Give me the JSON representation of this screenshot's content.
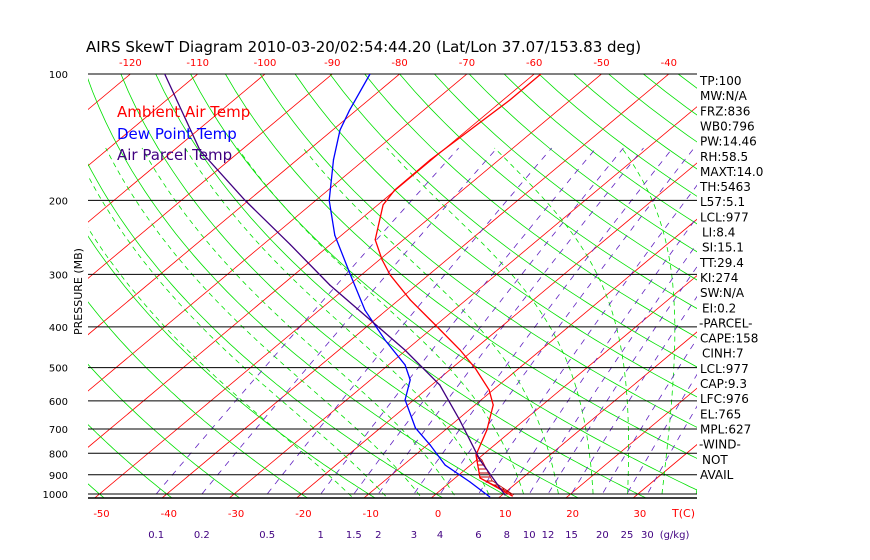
{
  "chart_data": {
    "type": "line",
    "title": "AIRS SkewT Diagram 2010-03-20/02:54:44.20 (Lat/Lon 37.07/153.83 deg)",
    "ylabel": "PRESSURE (MB)",
    "xlabel": "T(C)",
    "mixing_ratio_unit": "(g/kg)",
    "pressure_ticks": [
      100,
      200,
      300,
      400,
      500,
      600,
      700,
      800,
      900,
      1000
    ],
    "top_temp_ticks": [
      -120,
      -110,
      -100,
      -90,
      -80,
      -70,
      -60,
      -50,
      -40
    ],
    "bottom_temp_ticks": [
      -50,
      -40,
      -30,
      -20,
      -10,
      0,
      10,
      20,
      30
    ],
    "mixing_ratio_ticks": [
      "0.1",
      "0.2",
      "0.5",
      "1",
      "1.5",
      "2",
      "3",
      "4",
      "6",
      "8",
      "10",
      "12",
      "15",
      "20",
      "25",
      "30"
    ],
    "ylim": [
      1000,
      100
    ],
    "series": [
      {
        "name": "Ambient Air Temp",
        "color": "#ff0000",
        "p": [
          1011,
          916,
          807,
          704,
          614,
          565,
          501,
          454,
          396,
          345,
          301,
          277,
          248,
          205,
          189,
          160,
          136,
          115,
          100
        ],
        "T": [
          11.7,
          3.7,
          -1.0,
          -3.8,
          -7.3,
          -10.6,
          -16.6,
          -22.0,
          -30.1,
          -38.3,
          -45.7,
          -49.6,
          -54.2,
          -59.2,
          -60.1,
          -60.2,
          -59.6,
          -59.0,
          -59.0
        ]
      },
      {
        "name": "Dew Point Temp",
        "color": "#0000ff",
        "p": [
          1016,
          936,
          853,
          764,
          696,
          597,
          535,
          493,
          430,
          365,
          301,
          242,
          200,
          160,
          136,
          122,
          100
        ],
        "T": [
          8.5,
          2.9,
          -3.8,
          -9.6,
          -14.8,
          -21.3,
          -24.1,
          -27.5,
          -34.9,
          -43.2,
          -51.6,
          -61.0,
          -68.0,
          -74.6,
          -78.9,
          -81.0,
          -84.4
        ]
      },
      {
        "name": "Air Parcel Temp",
        "color": "#400080",
        "p": [
          1005,
          830,
          667,
          550,
          454,
          385,
          318,
          255,
          200,
          152,
          100
        ],
        "T": [
          10.4,
          0.5,
          -9.6,
          -18.8,
          -30.2,
          -40.7,
          -52.9,
          -65.9,
          -80.5,
          -96.1,
          -114.9
        ]
      }
    ]
  },
  "stats": [
    "TP:100",
    "MW:N/A",
    "FRZ:836",
    "WB0:796",
    "PW:14.46",
    "RH:58.5",
    "MAXT:14.0",
    "TH:5463",
    "L57:5.1",
    "LCL:977",
    "LI:8.4",
    "SI:15.1",
    "TT:29.4",
    "KI:274",
    "SW:N/A",
    "EI:0.2",
    "-PARCEL-",
    "CAPE:158",
    "CINH:7",
    "LCL:977",
    "CAP:9.3",
    "LFC:976",
    "EL:765",
    "MPL:627",
    "-WIND-",
    "NOT",
    "AVAIL"
  ],
  "colors": {
    "temp": "#ff0000",
    "dew": "#0000ff",
    "parcel": "#400080",
    "adiabat": "#00e000",
    "mixing": "#6020c0"
  }
}
